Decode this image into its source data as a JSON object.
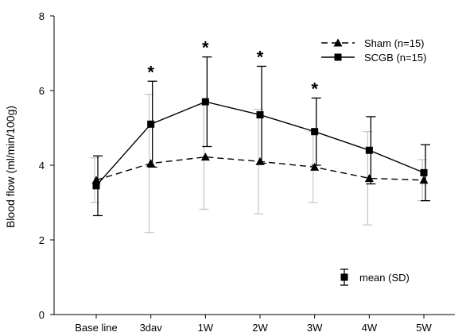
{
  "chart_data": {
    "type": "line",
    "ylabel": "Blood flow (ml/min/100g)",
    "xlabel": "",
    "ylim": [
      0,
      8
    ],
    "yticks": [
      0,
      2,
      4,
      6,
      8
    ],
    "categories": [
      "Base line",
      "3dav",
      "1W",
      "2W",
      "3W",
      "4W",
      "5W"
    ],
    "series": [
      {
        "name": "Sham (n=15)",
        "marker": "triangle",
        "line_style": "dashed",
        "error_bar_color": "#c8c8c8",
        "values": [
          3.6,
          4.05,
          4.22,
          4.1,
          3.95,
          3.65,
          3.6
        ],
        "sd": [
          0.6,
          1.85,
          1.4,
          1.4,
          0.95,
          1.25,
          0.55
        ]
      },
      {
        "name": "SCGB (n=15)",
        "marker": "square",
        "line_style": "solid",
        "error_bar_color": "#000000",
        "values": [
          3.45,
          5.1,
          5.7,
          5.35,
          4.9,
          4.4,
          3.8
        ],
        "sd": [
          0.8,
          1.15,
          1.2,
          1.3,
          0.9,
          0.9,
          0.75
        ]
      }
    ],
    "significance": [
      "",
      "*",
      "*",
      "*",
      "*",
      "",
      ""
    ],
    "legend_position": "top-right",
    "errorbar_legend": "mean (SD)",
    "grid": false
  }
}
